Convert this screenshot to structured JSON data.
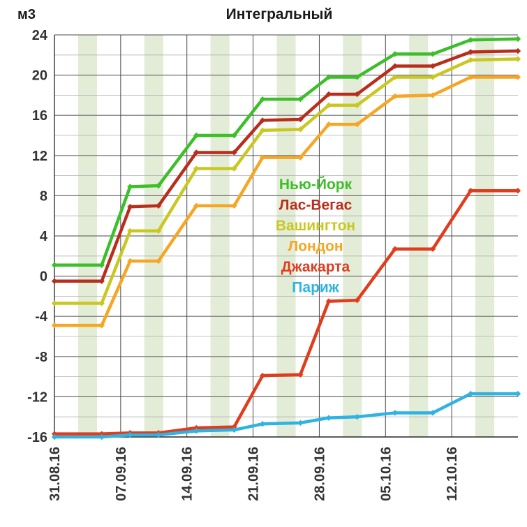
{
  "chart_data": {
    "type": "line",
    "title": "Интегральный",
    "ylabel": "м3",
    "xlabel": "",
    "ylim": [
      -16,
      24
    ],
    "yticks": [
      -16,
      -12,
      -8,
      -4,
      0,
      4,
      8,
      12,
      16,
      20,
      24
    ],
    "xtick_labels": [
      "31.08.16",
      "07.09.16",
      "14.09.16",
      "21.09.16",
      "28.09.16",
      "05.10.16",
      "12.10.16"
    ],
    "x_range": [
      "31.08.16",
      "19.10.16"
    ],
    "grid": true,
    "legend_position": "center",
    "weekend_shading": true,
    "series": [
      {
        "name": "Нью-Йорк",
        "color": "#3cbf2a",
        "points": [
          [
            "31.08.16",
            1.1
          ],
          [
            "05.09.16",
            1.1
          ],
          [
            "08.09.16",
            8.9
          ],
          [
            "11.09.16",
            9.0
          ],
          [
            "15.09.16",
            14.0
          ],
          [
            "19.09.16",
            14.0
          ],
          [
            "22.09.16",
            17.6
          ],
          [
            "26.09.16",
            17.6
          ],
          [
            "29.09.16",
            19.8
          ],
          [
            "02.10.16",
            19.8
          ],
          [
            "06.10.16",
            22.1
          ],
          [
            "10.10.16",
            22.1
          ],
          [
            "14.10.16",
            23.5
          ],
          [
            "19.10.16",
            23.6
          ]
        ]
      },
      {
        "name": "Лас-Вегас",
        "color": "#b82e1c",
        "points": [
          [
            "31.08.16",
            -0.5
          ],
          [
            "05.09.16",
            -0.5
          ],
          [
            "08.09.16",
            6.9
          ],
          [
            "11.09.16",
            7.0
          ],
          [
            "15.09.16",
            12.3
          ],
          [
            "19.09.16",
            12.3
          ],
          [
            "22.09.16",
            15.5
          ],
          [
            "26.09.16",
            15.6
          ],
          [
            "29.09.16",
            18.1
          ],
          [
            "02.10.16",
            18.1
          ],
          [
            "06.10.16",
            20.9
          ],
          [
            "10.10.16",
            20.9
          ],
          [
            "14.10.16",
            22.3
          ],
          [
            "19.10.16",
            22.4
          ]
        ]
      },
      {
        "name": "Вашингтон",
        "color": "#c9c822",
        "points": [
          [
            "31.08.16",
            -2.7
          ],
          [
            "05.09.16",
            -2.7
          ],
          [
            "08.09.16",
            4.5
          ],
          [
            "11.09.16",
            4.5
          ],
          [
            "15.09.16",
            10.7
          ],
          [
            "19.09.16",
            10.7
          ],
          [
            "22.09.16",
            14.5
          ],
          [
            "26.09.16",
            14.6
          ],
          [
            "29.09.16",
            17.0
          ],
          [
            "02.10.16",
            17.0
          ],
          [
            "06.10.16",
            19.8
          ],
          [
            "10.10.16",
            19.8
          ],
          [
            "14.10.16",
            21.5
          ],
          [
            "19.10.16",
            21.6
          ]
        ]
      },
      {
        "name": "Лондон",
        "color": "#f5a623",
        "points": [
          [
            "31.08.16",
            -4.9
          ],
          [
            "05.09.16",
            -4.9
          ],
          [
            "08.09.16",
            1.5
          ],
          [
            "11.09.16",
            1.5
          ],
          [
            "15.09.16",
            7.0
          ],
          [
            "19.09.16",
            7.0
          ],
          [
            "22.09.16",
            11.8
          ],
          [
            "26.09.16",
            11.8
          ],
          [
            "29.09.16",
            15.1
          ],
          [
            "02.10.16",
            15.1
          ],
          [
            "06.10.16",
            17.9
          ],
          [
            "10.10.16",
            18.0
          ],
          [
            "14.10.16",
            19.8
          ],
          [
            "19.10.16",
            19.8
          ]
        ]
      },
      {
        "name": "Джакарта",
        "color": "#e03c1e",
        "points": [
          [
            "31.08.16",
            -15.7
          ],
          [
            "05.09.16",
            -15.7
          ],
          [
            "08.09.16",
            -15.6
          ],
          [
            "11.09.16",
            -15.6
          ],
          [
            "15.09.16",
            -15.1
          ],
          [
            "19.09.16",
            -15.0
          ],
          [
            "22.09.16",
            -9.9
          ],
          [
            "26.09.16",
            -9.8
          ],
          [
            "29.09.16",
            -2.5
          ],
          [
            "02.10.16",
            -2.4
          ],
          [
            "06.10.16",
            2.7
          ],
          [
            "10.10.16",
            2.7
          ],
          [
            "14.10.16",
            8.5
          ],
          [
            "19.10.16",
            8.5
          ]
        ]
      },
      {
        "name": "Париж",
        "color": "#2eb3e3",
        "points": [
          [
            "31.08.16",
            -16.0
          ],
          [
            "05.09.16",
            -16.0
          ],
          [
            "08.09.16",
            -15.8
          ],
          [
            "11.09.16",
            -15.8
          ],
          [
            "15.09.16",
            -15.4
          ],
          [
            "19.09.16",
            -15.3
          ],
          [
            "22.09.16",
            -14.7
          ],
          [
            "26.09.16",
            -14.6
          ],
          [
            "29.09.16",
            -14.1
          ],
          [
            "02.10.16",
            -14.0
          ],
          [
            "06.10.16",
            -13.6
          ],
          [
            "10.10.16",
            -13.6
          ],
          [
            "14.10.16",
            -11.7
          ],
          [
            "19.10.16",
            -11.7
          ]
        ]
      }
    ]
  }
}
